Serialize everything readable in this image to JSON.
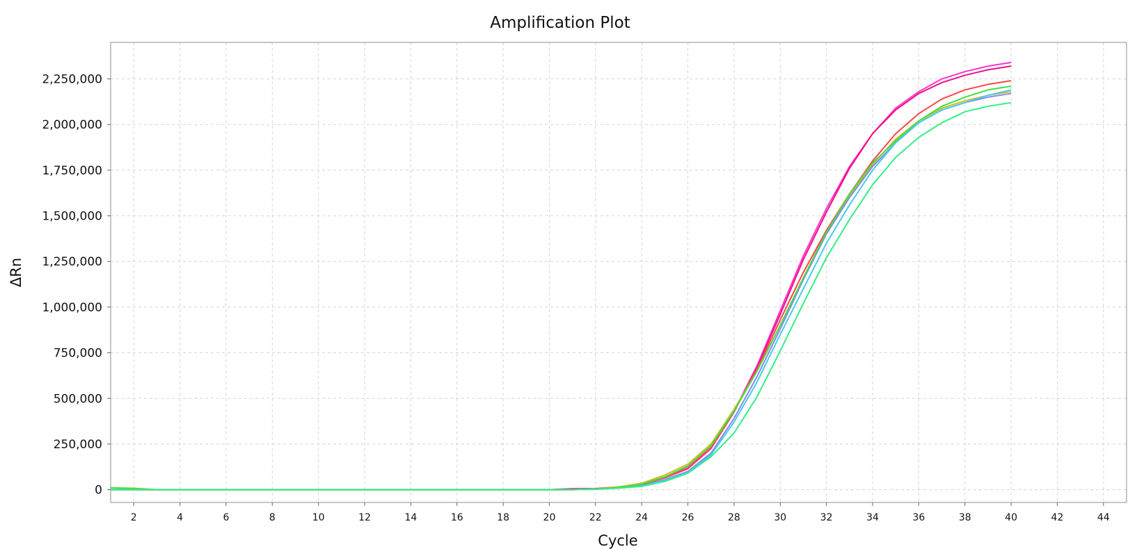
{
  "chart_data": {
    "type": "line",
    "title": "Amplification Plot",
    "xlabel": "Cycle",
    "ylabel": "ΔRn",
    "xlim": [
      1,
      45
    ],
    "ylim": [
      -70000,
      2450000
    ],
    "x_ticks": [
      2,
      4,
      6,
      8,
      10,
      12,
      14,
      16,
      18,
      20,
      22,
      24,
      26,
      28,
      30,
      32,
      34,
      36,
      38,
      40,
      42,
      44
    ],
    "y_ticks": [
      0,
      250000,
      500000,
      750000,
      1000000,
      1250000,
      1500000,
      1750000,
      2000000,
      2250000
    ],
    "y_tick_labels": [
      "0",
      "250,000",
      "500,000",
      "750,000",
      "1,000,000",
      "1,250,000",
      "1,500,000",
      "1,750,000",
      "2,000,000",
      "2,250,000"
    ],
    "x_tick_labels": [
      "2",
      "4",
      "6",
      "8",
      "10",
      "12",
      "14",
      "16",
      "18",
      "20",
      "22",
      "24",
      "26",
      "28",
      "30",
      "32",
      "34",
      "36",
      "38",
      "40",
      "42",
      "44"
    ],
    "grid": true,
    "legend": "none",
    "x": [
      1,
      2,
      3,
      4,
      5,
      6,
      7,
      8,
      9,
      10,
      11,
      12,
      13,
      14,
      15,
      16,
      17,
      18,
      19,
      20,
      21,
      22,
      23,
      24,
      25,
      26,
      27,
      28,
      29,
      30,
      31,
      32,
      33,
      34,
      35,
      36,
      37,
      38,
      39,
      40
    ],
    "series": [
      {
        "color": "#ff33cc",
        "values": [
          0,
          0,
          0,
          0,
          0,
          0,
          0,
          0,
          0,
          0,
          0,
          0,
          0,
          0,
          0,
          0,
          0,
          0,
          0,
          0,
          5000,
          6000,
          15000,
          30000,
          70000,
          120000,
          230000,
          430000,
          680000,
          980000,
          1280000,
          1540000,
          1770000,
          1950000,
          2090000,
          2180000,
          2250000,
          2290000,
          2320000,
          2340000
        ]
      },
      {
        "color": "#ee1188",
        "values": [
          0,
          0,
          0,
          0,
          0,
          0,
          0,
          0,
          0,
          0,
          0,
          0,
          0,
          0,
          0,
          0,
          0,
          0,
          0,
          0,
          4000,
          5000,
          14000,
          28000,
          65000,
          115000,
          225000,
          425000,
          670000,
          960000,
          1260000,
          1520000,
          1760000,
          1950000,
          2080000,
          2170000,
          2230000,
          2270000,
          2300000,
          2320000
        ]
      },
      {
        "color": "#ff4444",
        "values": [
          0,
          0,
          0,
          0,
          0,
          0,
          0,
          0,
          0,
          0,
          0,
          0,
          0,
          0,
          0,
          0,
          0,
          0,
          0,
          0,
          0,
          4000,
          12000,
          28000,
          65000,
          115000,
          225000,
          430000,
          660000,
          930000,
          1190000,
          1420000,
          1620000,
          1800000,
          1950000,
          2060000,
          2140000,
          2190000,
          2220000,
          2240000
        ]
      },
      {
        "color": "#ccbb22",
        "values": [
          10000,
          8000,
          0,
          0,
          0,
          0,
          0,
          0,
          0,
          0,
          0,
          0,
          0,
          0,
          0,
          0,
          0,
          0,
          0,
          0,
          0,
          4000,
          15000,
          35000,
          80000,
          140000,
          250000,
          440000,
          650000,
          900000,
          1160000,
          1410000,
          1610000,
          1780000,
          1920000,
          2020000,
          2090000,
          2130000,
          2160000,
          2180000
        ]
      },
      {
        "color": "#8888ee",
        "values": [
          0,
          0,
          0,
          0,
          0,
          0,
          0,
          0,
          0,
          0,
          0,
          0,
          0,
          0,
          0,
          0,
          0,
          0,
          0,
          0,
          0,
          3000,
          10000,
          22000,
          55000,
          100000,
          200000,
          390000,
          620000,
          880000,
          1150000,
          1400000,
          1600000,
          1770000,
          1900000,
          2010000,
          2080000,
          2120000,
          2150000,
          2170000
        ]
      },
      {
        "color": "#44ccee",
        "values": [
          0,
          0,
          0,
          0,
          0,
          0,
          0,
          0,
          0,
          0,
          0,
          0,
          0,
          0,
          0,
          0,
          0,
          0,
          0,
          0,
          0,
          2000,
          9000,
          20000,
          50000,
          95000,
          190000,
          370000,
          590000,
          850000,
          1100000,
          1350000,
          1560000,
          1750000,
          1900000,
          2010000,
          2080000,
          2120000,
          2160000,
          2190000
        ]
      },
      {
        "color": "#44dd44",
        "values": [
          10000,
          6000,
          0,
          0,
          0,
          0,
          0,
          0,
          0,
          0,
          0,
          0,
          0,
          0,
          0,
          0,
          0,
          0,
          0,
          0,
          0,
          3000,
          12000,
          30000,
          70000,
          130000,
          240000,
          430000,
          650000,
          900000,
          1160000,
          1410000,
          1620000,
          1790000,
          1910000,
          2020000,
          2100000,
          2150000,
          2190000,
          2210000
        ]
      },
      {
        "color": "#33ee88",
        "values": [
          0,
          0,
          0,
          0,
          0,
          0,
          0,
          0,
          0,
          0,
          0,
          0,
          0,
          0,
          0,
          0,
          0,
          0,
          0,
          0,
          0,
          2000,
          8000,
          18000,
          45000,
          90000,
          180000,
          310000,
          510000,
          760000,
          1020000,
          1270000,
          1480000,
          1670000,
          1820000,
          1930000,
          2010000,
          2070000,
          2100000,
          2120000
        ]
      }
    ]
  }
}
